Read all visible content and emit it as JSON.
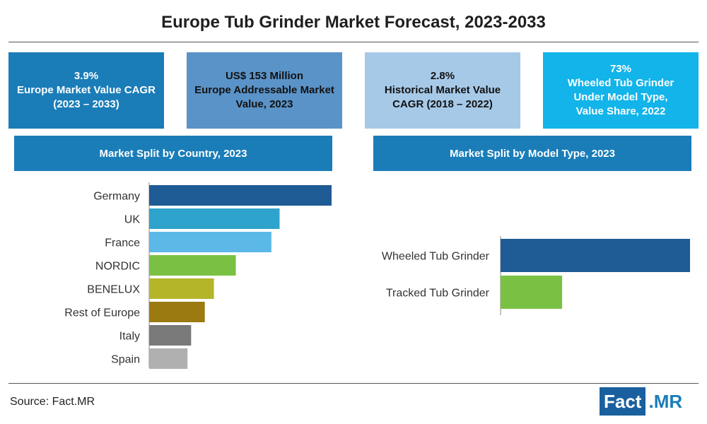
{
  "title": "Europe Tub Grinder Market Forecast, 2023-2033",
  "kpis": [
    {
      "text": "3.9%\nEurope Market Value CAGR\n(2023 – 2033)",
      "color": "#1a7db8"
    },
    {
      "text": "US$ 153 Million\nEurope Addressable Market\nValue, 2023",
      "color": "#5a93c8"
    },
    {
      "text": "2.8%\nHistorical Market Value\nCAGR (2018 – 2022)",
      "color": "#a6c9e8"
    },
    {
      "text": "73%\nWheeled Tub Grinder\nUnder Model Type,\nValue Share, 2022",
      "color": "#12b4ea"
    }
  ],
  "sections": {
    "country": "Market Split by Country, 2023",
    "model": "Market Split by Model Type, 2023"
  },
  "chart_data": [
    {
      "type": "bar",
      "orientation": "horizontal",
      "title": "Market Split by Country, 2023",
      "categories": [
        "Germany",
        "UK",
        "France",
        "NORDIC",
        "BENELUX",
        "Rest of Europe",
        "Italy",
        "Spain"
      ],
      "values": [
        100,
        71.5,
        67,
        47.5,
        35.5,
        30.5,
        23,
        21
      ],
      "colors": [
        "#1f5b94",
        "#2ea3cc",
        "#5cb8e6",
        "#7ac143",
        "#b5b52a",
        "#9c7a12",
        "#7a7a7a",
        "#b0b0b0"
      ],
      "xlim": [
        0,
        100
      ]
    },
    {
      "type": "bar",
      "orientation": "horizontal",
      "title": "Market Split by Model Type, 2023",
      "categories": [
        "Wheeled Tub Grinder",
        "Tracked Tub Grinder"
      ],
      "values": [
        100,
        32.5
      ],
      "colors": [
        "#1f5b94",
        "#7ac143"
      ],
      "xlim": [
        0,
        100
      ]
    }
  ],
  "footer": {
    "source": "Source: Fact.MR",
    "logo_left": "Fact",
    "logo_right": ".MR"
  }
}
